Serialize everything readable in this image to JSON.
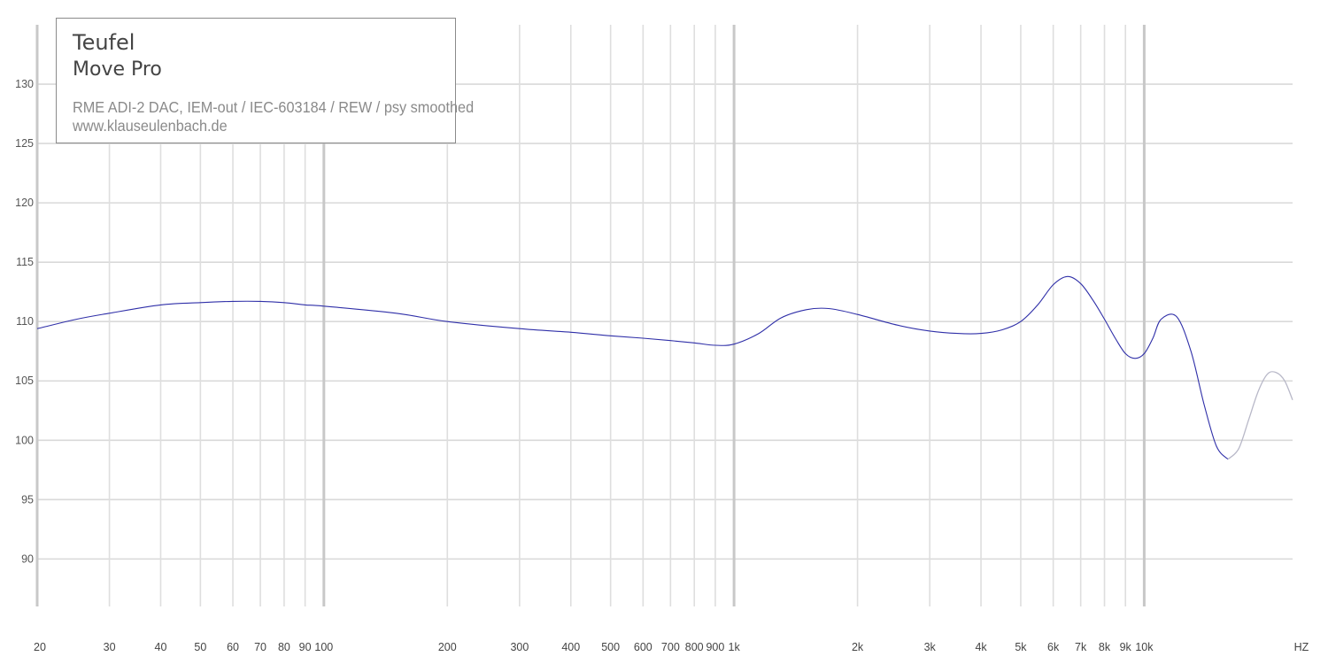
{
  "chart_data": {
    "type": "line",
    "x_scale": "log",
    "xlim": [
      20,
      23000
    ],
    "ylim": [
      86,
      135
    ],
    "grid": true,
    "y_ticks": [
      90,
      95,
      100,
      105,
      110,
      115,
      120,
      125,
      130
    ],
    "x_ticks": [
      {
        "value": 20,
        "label": "20"
      },
      {
        "value": 30,
        "label": "30"
      },
      {
        "value": 40,
        "label": "40"
      },
      {
        "value": 50,
        "label": "50"
      },
      {
        "value": 60,
        "label": "60"
      },
      {
        "value": 70,
        "label": "70"
      },
      {
        "value": 80,
        "label": "80"
      },
      {
        "value": 90,
        "label": "90"
      },
      {
        "value": 100,
        "label": "100"
      },
      {
        "value": 200,
        "label": "200"
      },
      {
        "value": 300,
        "label": "300"
      },
      {
        "value": 400,
        "label": "400"
      },
      {
        "value": 500,
        "label": "500"
      },
      {
        "value": 600,
        "label": "600"
      },
      {
        "value": 700,
        "label": "700"
      },
      {
        "value": 800,
        "label": "800"
      },
      {
        "value": 900,
        "label": "900"
      },
      {
        "value": 1000,
        "label": "1k"
      },
      {
        "value": 2000,
        "label": "2k"
      },
      {
        "value": 3000,
        "label": "3k"
      },
      {
        "value": 4000,
        "label": "4k"
      },
      {
        "value": 5000,
        "label": "5k"
      },
      {
        "value": 6000,
        "label": "6k"
      },
      {
        "value": 7000,
        "label": "7k"
      },
      {
        "value": 8000,
        "label": "8k"
      },
      {
        "value": 9000,
        "label": "9k"
      },
      {
        "value": 10000,
        "label": "10k"
      }
    ],
    "x_unit_label": "HZ",
    "series": [
      {
        "color": "#2f2fa8",
        "faded_color": "#b8b8c8",
        "faded_from_x": 16000,
        "x": [
          20,
          25,
          30,
          40,
          50,
          60,
          70,
          80,
          90,
          100,
          150,
          200,
          300,
          400,
          500,
          600,
          700,
          800,
          900,
          1000,
          1150,
          1300,
          1500,
          1700,
          2000,
          2500,
          3000,
          3500,
          4000,
          4500,
          5000,
          5500,
          6000,
          6500,
          7000,
          7500,
          8000,
          8500,
          9000,
          9500,
          10000,
          10500,
          11000,
          12000,
          13000,
          14000,
          15000,
          16000,
          17000,
          18000,
          19000,
          20000,
          21000,
          22000,
          23000
        ],
        "y": [
          109.4,
          110.2,
          110.7,
          111.4,
          111.6,
          111.7,
          111.7,
          111.6,
          111.4,
          111.3,
          110.7,
          110.0,
          109.4,
          109.1,
          108.8,
          108.6,
          108.4,
          108.2,
          108.0,
          108.1,
          109.0,
          110.3,
          111.0,
          111.1,
          110.6,
          109.7,
          109.2,
          109.0,
          109.0,
          109.3,
          110.0,
          111.4,
          113.1,
          113.8,
          113.2,
          111.8,
          110.2,
          108.6,
          107.3,
          106.9,
          107.3,
          108.6,
          110.2,
          110.4,
          107.5,
          103.0,
          99.5,
          98.4,
          99.3,
          101.8,
          104.2,
          105.6,
          105.7,
          105.0,
          103.4
        ]
      }
    ]
  },
  "legend": {
    "brand": "Teufel",
    "model": "Move Pro",
    "setup": "RME ADI-2 DAC, IEM-out / IEC-603184 / REW / psy smoothed",
    "url": "www.klauseulenbach.de"
  }
}
